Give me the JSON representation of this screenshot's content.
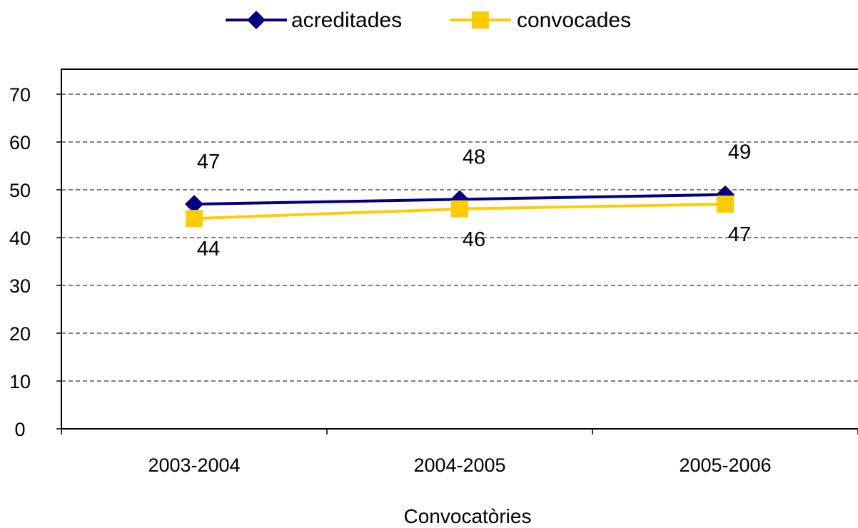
{
  "chart_data": {
    "type": "line",
    "categories": [
      "2003-2004",
      "2004-2005",
      "2005-2006"
    ],
    "series": [
      {
        "name": "acreditades",
        "values": [
          47,
          48,
          49
        ],
        "color": "#000080",
        "marker": "diamond"
      },
      {
        "name": "convocades",
        "values": [
          44,
          46,
          47
        ],
        "color": "#FFCC00",
        "marker": "square"
      }
    ],
    "xlabel": "Convocatòries",
    "ylabel": "",
    "ylim": [
      0,
      70
    ],
    "yticks": [
      0,
      10,
      20,
      30,
      40,
      50,
      60,
      70
    ],
    "grid": true,
    "legend_position": "top"
  }
}
